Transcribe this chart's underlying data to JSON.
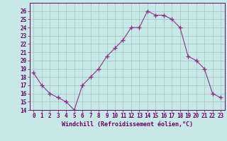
{
  "x": [
    0,
    1,
    2,
    3,
    4,
    5,
    6,
    7,
    8,
    9,
    10,
    11,
    12,
    13,
    14,
    15,
    16,
    17,
    18,
    19,
    20,
    21,
    22,
    23
  ],
  "y": [
    18.5,
    17.0,
    16.0,
    15.5,
    15.0,
    14.0,
    17.0,
    18.0,
    19.0,
    20.5,
    21.5,
    22.5,
    24.0,
    24.0,
    26.0,
    25.5,
    25.5,
    25.0,
    24.0,
    20.5,
    20.0,
    19.0,
    16.0,
    15.5
  ],
  "line_color": "#883388",
  "marker": "+",
  "marker_size": 4,
  "bg_color": "#c8e8e8",
  "grid_color": "#a8c8c8",
  "xlabel": "Windchill (Refroidissement éolien,°C)",
  "xlabel_color": "#660066",
  "tick_color": "#660066",
  "ylim": [
    14,
    27
  ],
  "yticks": [
    14,
    15,
    16,
    17,
    18,
    19,
    20,
    21,
    22,
    23,
    24,
    25,
    26
  ],
  "xticks": [
    0,
    1,
    2,
    3,
    4,
    5,
    6,
    7,
    8,
    9,
    10,
    11,
    12,
    13,
    14,
    15,
    16,
    17,
    18,
    19,
    20,
    21,
    22,
    23
  ],
  "font_family": "monospace",
  "tick_fontsize": 5.5,
  "xlabel_fontsize": 6.0
}
